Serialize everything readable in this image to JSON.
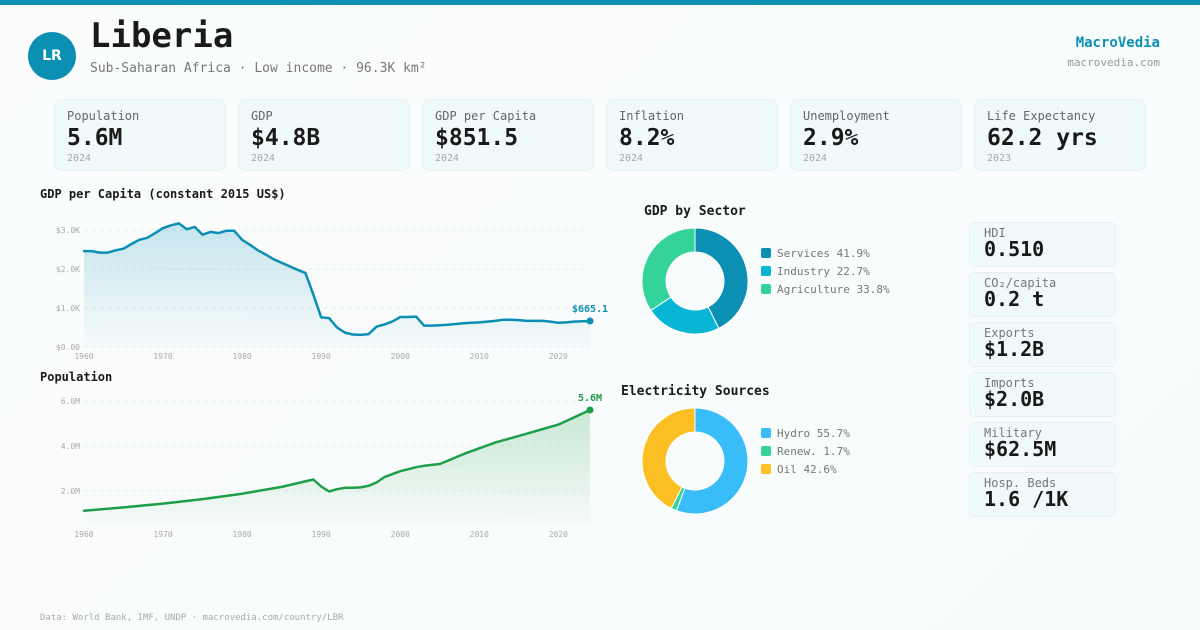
{
  "header": {
    "country_code": "LR",
    "title": "Liberia",
    "subtitle": "Sub-Saharan Africa · Low income · 96.3K km²",
    "brand": "MacroVedia",
    "brand_url": "macrovedia.com"
  },
  "kpis": [
    {
      "label": "Population",
      "value": "5.6M",
      "year": "2024"
    },
    {
      "label": "GDP",
      "value": "$4.8B",
      "year": "2024"
    },
    {
      "label": "GDP per Capita",
      "value": "$851.5",
      "year": "2024"
    },
    {
      "label": "Inflation",
      "value": "8.2%",
      "year": "2024"
    },
    {
      "label": "Unemployment",
      "value": "2.9%",
      "year": "2024"
    },
    {
      "label": "Life Expectancy",
      "value": "62.2 yrs",
      "year": "2023"
    }
  ],
  "side_stats": [
    {
      "label": "HDI",
      "value": "0.510"
    },
    {
      "label": "CO₂/capita",
      "value": "0.2 t"
    },
    {
      "label": "Exports",
      "value": "$1.2B"
    },
    {
      "label": "Imports",
      "value": "$2.0B"
    },
    {
      "label": "Military",
      "value": "$62.5M"
    },
    {
      "label": "Hosp. Beds",
      "value": "1.6 /1K"
    }
  ],
  "colors": {
    "accent": "#0b8fb3",
    "gdp_line": "#0b8fb3",
    "pop_line": "#1e9e4a"
  },
  "footer": "Data: World Bank, IMF, UNDP · macrovedia.com/country/LBR",
  "chart_data": [
    {
      "id": "gdp_per_capita",
      "type": "area",
      "title": "GDP per Capita (constant 2015 US$)",
      "xlabel": "",
      "ylabel": "",
      "x_ticks": [
        "1960",
        "1970",
        "1980",
        "1990",
        "2000",
        "2010",
        "2020"
      ],
      "y_ticks": [
        "$0.00",
        "$1.0K",
        "$2.0K",
        "$3.0K"
      ],
      "y_tick_values": [
        0,
        1000,
        2000,
        3000
      ],
      "xlim": [
        1960,
        2024
      ],
      "ylim": [
        0,
        3000
      ],
      "grid": true,
      "end_label": "$665.1",
      "x": [
        1960,
        1961,
        1962,
        1963,
        1964,
        1965,
        1966,
        1967,
        1968,
        1969,
        1970,
        1971,
        1972,
        1973,
        1974,
        1975,
        1976,
        1977,
        1978,
        1979,
        1980,
        1981,
        1982,
        1983,
        1984,
        1985,
        1986,
        1987,
        1988,
        1989,
        1990,
        1991,
        1992,
        1993,
        1994,
        1995,
        1996,
        1997,
        1998,
        1999,
        2000,
        2001,
        2002,
        2003,
        2004,
        2005,
        2006,
        2007,
        2008,
        2009,
        2010,
        2011,
        2012,
        2013,
        2014,
        2015,
        2016,
        2017,
        2018,
        2019,
        2020,
        2021,
        2022,
        2023,
        2024
      ],
      "values": [
        2460,
        2460,
        2420,
        2420,
        2480,
        2520,
        2640,
        2750,
        2800,
        2920,
        3050,
        3120,
        3170,
        3020,
        3080,
        2880,
        2950,
        2920,
        2980,
        2980,
        2750,
        2620,
        2480,
        2370,
        2250,
        2160,
        2070,
        1980,
        1900,
        1350,
        760,
        740,
        500,
        370,
        320,
        310,
        330,
        520,
        580,
        650,
        770,
        770,
        780,
        550,
        550,
        560,
        570,
        590,
        610,
        620,
        630,
        650,
        670,
        700,
        700,
        690,
        670,
        670,
        670,
        650,
        620,
        630,
        650,
        660,
        665.1
      ]
    },
    {
      "id": "population",
      "type": "area",
      "title": "Population",
      "xlabel": "",
      "ylabel": "",
      "x_ticks": [
        "1960",
        "1970",
        "1980",
        "1990",
        "2000",
        "2010",
        "2020"
      ],
      "y_ticks": [
        "2.0M",
        "4.0M",
        "6.0M"
      ],
      "y_tick_values": [
        2000000,
        4000000,
        6000000
      ],
      "xlim": [
        1960,
        2024
      ],
      "ylim": [
        0,
        6000000
      ],
      "grid": true,
      "end_label": "5.6M",
      "x": [
        1960,
        1965,
        1970,
        1975,
        1980,
        1985,
        1989,
        1990,
        1991,
        1992,
        1993,
        1994,
        1995,
        1996,
        1997,
        1998,
        2000,
        2002,
        2003,
        2005,
        2008,
        2010,
        2012,
        2015,
        2020,
        2024
      ],
      "values": [
        1120000,
        1270000,
        1440000,
        1640000,
        1880000,
        2180000,
        2510000,
        2200000,
        1980000,
        2080000,
        2140000,
        2140000,
        2160000,
        2230000,
        2380000,
        2620000,
        2880000,
        3060000,
        3120000,
        3200000,
        3640000,
        3900000,
        4150000,
        4450000,
        4950000,
        5600000
      ]
    },
    {
      "id": "gdp_by_sector",
      "type": "pie",
      "title": "GDP by Sector",
      "categories": [
        "Services",
        "Industry",
        "Agriculture"
      ],
      "values": [
        41.9,
        22.7,
        33.8
      ],
      "labels": [
        "Services 41.9%",
        "Industry 22.7%",
        "Agriculture 33.8%"
      ],
      "colors": [
        "#0b8fb3",
        "#06b6d4",
        "#34d399"
      ],
      "legend": "right"
    },
    {
      "id": "electricity_sources",
      "type": "pie",
      "title": "Electricity Sources",
      "categories": [
        "Hydro",
        "Renew.",
        "Oil"
      ],
      "values": [
        55.7,
        1.7,
        42.6
      ],
      "labels": [
        "Hydro 55.7%",
        "Renew. 1.7%",
        "Oil 42.6%"
      ],
      "colors": [
        "#38bdf8",
        "#34d399",
        "#fbbf24"
      ],
      "legend": "right"
    }
  ]
}
